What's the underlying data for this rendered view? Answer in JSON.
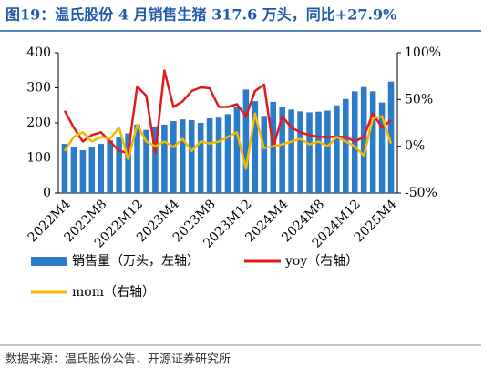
{
  "chart_data": {
    "type": "bar",
    "title": "图19：温氏股份 4 月销售生猪 317.6 万头，同比+27.9%",
    "source": "数据来源：温氏股份公告、开源证券研究所",
    "categories": [
      "2022M4",
      null,
      null,
      null,
      "2022M8",
      null,
      null,
      null,
      "2022M12",
      null,
      null,
      null,
      "2023M4",
      null,
      null,
      null,
      "2023M8",
      null,
      null,
      null,
      "2023M12",
      null,
      null,
      null,
      "2024M4",
      null,
      null,
      null,
      "2024M8",
      null,
      null,
      null,
      "2024M12",
      null,
      null,
      null,
      "2025M4"
    ],
    "ylim": [
      0,
      400
    ],
    "yticks": [
      0,
      100,
      200,
      300,
      400
    ],
    "y2lim": [
      -50,
      100
    ],
    "y2ticks": [
      {
        "value": -50,
        "label": "-50%"
      },
      {
        "value": 0,
        "label": "0%"
      },
      {
        "value": 50,
        "label": "50%"
      },
      {
        "value": 100,
        "label": "100%"
      }
    ],
    "series": [
      {
        "name": "销售量（万头，左轴）",
        "type": "bar",
        "color": "#2b7bc8",
        "values": [
          140,
          130,
          122,
          130,
          140,
          150,
          160,
          170,
          195,
          180,
          190,
          195,
          205,
          210,
          208,
          200,
          213,
          215,
          225,
          245,
          295,
          262,
          220,
          260,
          245,
          238,
          233,
          230,
          232,
          235,
          250,
          268,
          290,
          302,
          290,
          258,
          317.6
        ]
      },
      {
        "name": "yoy（右轴）",
        "type": "line",
        "axis": "y2",
        "color": "#e31a1c",
        "values": [
          38,
          20,
          5,
          12,
          15,
          5,
          -5,
          -7,
          64,
          54,
          -7,
          81,
          42,
          48,
          59,
          63,
          62,
          42,
          42,
          45,
          32,
          59,
          66,
          -1,
          32,
          20,
          15,
          12,
          10,
          10,
          10,
          10,
          5,
          10,
          35,
          20,
          27.9
        ]
      },
      {
        "name": "mom（右轴）",
        "type": "line",
        "axis": "y2",
        "color": "#f5b800",
        "values": [
          -5,
          10,
          15,
          5,
          10,
          8,
          20,
          -14,
          23,
          5,
          0,
          5,
          -1,
          8,
          -5,
          5,
          3,
          5,
          10,
          15,
          -24,
          35,
          -2,
          0,
          2,
          5,
          8,
          2,
          5,
          0,
          10,
          5,
          0,
          -10,
          30,
          32,
          3
        ]
      }
    ]
  }
}
